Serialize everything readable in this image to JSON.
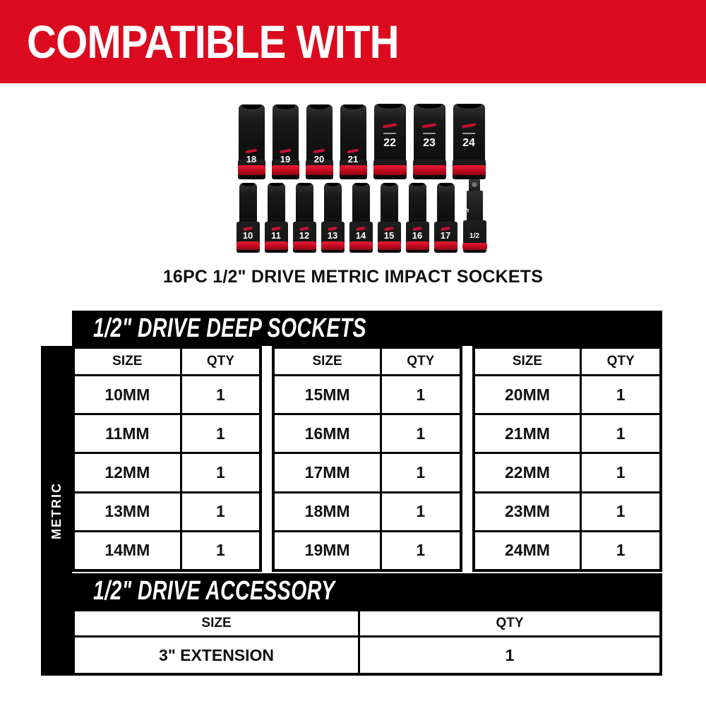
{
  "colors": {
    "brand_red": "#db0a1e",
    "black": "#000000",
    "white": "#ffffff"
  },
  "header": {
    "title": "COMPATIBLE WITH"
  },
  "product": {
    "caption": "16PC 1/2\" DRIVE METRIC IMPACT SOCKETS",
    "top_row_sockets": [
      "18",
      "19",
      "20",
      "21",
      "22",
      "23",
      "24"
    ],
    "bottom_row_sockets": [
      "10",
      "11",
      "12",
      "13",
      "14",
      "15",
      "16",
      "17"
    ],
    "extension_side_label": "3\"",
    "extension_drive_label": "1/2"
  },
  "deep_sockets_section": {
    "title": "1/2\" DRIVE DEEP SOCKETS",
    "side_label": "METRIC",
    "columns": [
      "SIZE",
      "QTY"
    ],
    "tables": [
      {
        "rows": [
          [
            "10MM",
            "1"
          ],
          [
            "11MM",
            "1"
          ],
          [
            "12MM",
            "1"
          ],
          [
            "13MM",
            "1"
          ],
          [
            "14MM",
            "1"
          ]
        ]
      },
      {
        "rows": [
          [
            "15MM",
            "1"
          ],
          [
            "16MM",
            "1"
          ],
          [
            "17MM",
            "1"
          ],
          [
            "18MM",
            "1"
          ],
          [
            "19MM",
            "1"
          ]
        ]
      },
      {
        "rows": [
          [
            "20MM",
            "1"
          ],
          [
            "21MM",
            "1"
          ],
          [
            "22MM",
            "1"
          ],
          [
            "23MM",
            "1"
          ],
          [
            "24MM",
            "1"
          ]
        ]
      }
    ]
  },
  "accessory_section": {
    "title": "1/2\" DRIVE ACCESSORY",
    "columns": [
      "SIZE",
      "QTY"
    ],
    "rows": [
      [
        "3\" EXTENSION",
        "1"
      ]
    ]
  }
}
